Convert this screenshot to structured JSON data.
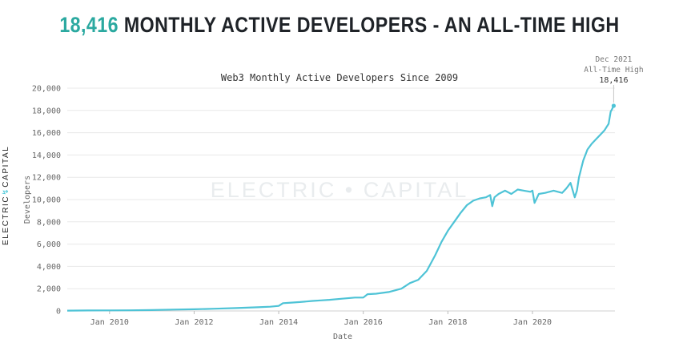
{
  "headline": {
    "number": "18,416",
    "rest": " MONTHLY ACTIVE DEVELOPERS - AN ALL-TIME HIGH"
  },
  "brand": {
    "left": "ELECTRIC",
    "bolt": "↯",
    "right": "CAPITAL"
  },
  "watermark": "ELECTRIC • CAPITAL",
  "colors": {
    "accent": "#2ba9a0",
    "line": "#4ec3d6",
    "grid": "#e8e8e8"
  },
  "chart_data": {
    "type": "line",
    "title": "Web3 Monthly Active Developers Since 2009",
    "xlabel": "Date",
    "ylabel": "Developers",
    "ylim": [
      0,
      20000
    ],
    "xlim": [
      2009.0,
      2021.95
    ],
    "yticks": [
      0,
      2000,
      4000,
      6000,
      8000,
      10000,
      12000,
      14000,
      16000,
      18000,
      20000
    ],
    "ytick_labels": [
      "0",
      "2,000",
      "4,000",
      "6,000",
      "8,000",
      "10,000",
      "12,000",
      "14,000",
      "16,000",
      "18,000",
      "20,000"
    ],
    "xticks": [
      2010,
      2012,
      2014,
      2016,
      2018,
      2020
    ],
    "xtick_labels": [
      "Jan 2010",
      "Jan 2012",
      "Jan 2014",
      "Jan 2016",
      "Jan 2018",
      "Jan 2020"
    ],
    "grid": "horizontal",
    "annotation": {
      "x": 2021.92,
      "y": 18416,
      "line1": "Dec 2021",
      "line2": "All-Time High",
      "value": "18,416"
    },
    "series": [
      {
        "name": "Developers",
        "x": [
          2009.0,
          2009.5,
          2010.0,
          2010.5,
          2011.0,
          2011.5,
          2012.0,
          2012.5,
          2013.0,
          2013.5,
          2013.8,
          2014.0,
          2014.1,
          2014.3,
          2014.5,
          2014.8,
          2015.0,
          2015.2,
          2015.5,
          2015.8,
          2016.0,
          2016.1,
          2016.3,
          2016.6,
          2016.9,
          2017.1,
          2017.3,
          2017.5,
          2017.7,
          2017.85,
          2018.0,
          2018.15,
          2018.3,
          2018.45,
          2018.6,
          2018.75,
          2018.9,
          2019.0,
          2019.05,
          2019.1,
          2019.2,
          2019.35,
          2019.5,
          2019.65,
          2019.8,
          2019.95,
          2020.0,
          2020.05,
          2020.15,
          2020.3,
          2020.5,
          2020.7,
          2020.8,
          2020.9,
          2021.0,
          2021.05,
          2021.1,
          2021.2,
          2021.3,
          2021.4,
          2021.5,
          2021.6,
          2021.7,
          2021.75,
          2021.8,
          2021.85,
          2021.88,
          2021.92
        ],
        "values": [
          30,
          40,
          50,
          60,
          80,
          120,
          150,
          200,
          260,
          330,
          380,
          450,
          700,
          750,
          800,
          900,
          950,
          1000,
          1100,
          1200,
          1200,
          1500,
          1550,
          1700,
          2000,
          2500,
          2800,
          3600,
          5000,
          6200,
          7200,
          8000,
          8800,
          9500,
          9900,
          10100,
          10200,
          10400,
          9400,
          10200,
          10500,
          10800,
          10500,
          10900,
          10800,
          10700,
          10800,
          9700,
          10500,
          10600,
          10800,
          10600,
          11000,
          11500,
          10200,
          10800,
          12000,
          13500,
          14500,
          15000,
          15400,
          15800,
          16200,
          16500,
          16800,
          17900,
          18100,
          18416
        ]
      }
    ]
  }
}
